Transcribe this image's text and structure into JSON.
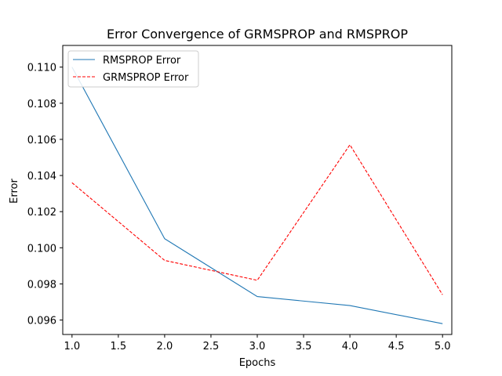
{
  "chart_data": {
    "type": "line",
    "title": "Error Convergence of GRMSPROP and RMSPROP",
    "xlabel": "Epochs",
    "ylabel": "Error",
    "x": [
      1,
      2,
      3,
      4,
      5
    ],
    "xlim": [
      0.9,
      5.1
    ],
    "ylim": [
      0.0952,
      0.1112
    ],
    "xticks": [
      "1.0",
      "1.5",
      "2.0",
      "2.5",
      "3.0",
      "3.5",
      "4.0",
      "4.5",
      "5.0"
    ],
    "yticks": [
      "0.096",
      "0.098",
      "0.100",
      "0.102",
      "0.104",
      "0.106",
      "0.108",
      "0.110"
    ],
    "grid": false,
    "legend_position": "upper-left",
    "series": [
      {
        "name": "RMSPROP Error",
        "values": [
          0.11,
          0.1005,
          0.0973,
          0.0968,
          0.0958
        ],
        "color": "#1f77b4",
        "style": "solid"
      },
      {
        "name": "GRMSPROP Error",
        "values": [
          0.1036,
          0.0993,
          0.0982,
          0.1057,
          0.0974
        ],
        "color": "#ff0000",
        "style": "dashed"
      }
    ]
  }
}
